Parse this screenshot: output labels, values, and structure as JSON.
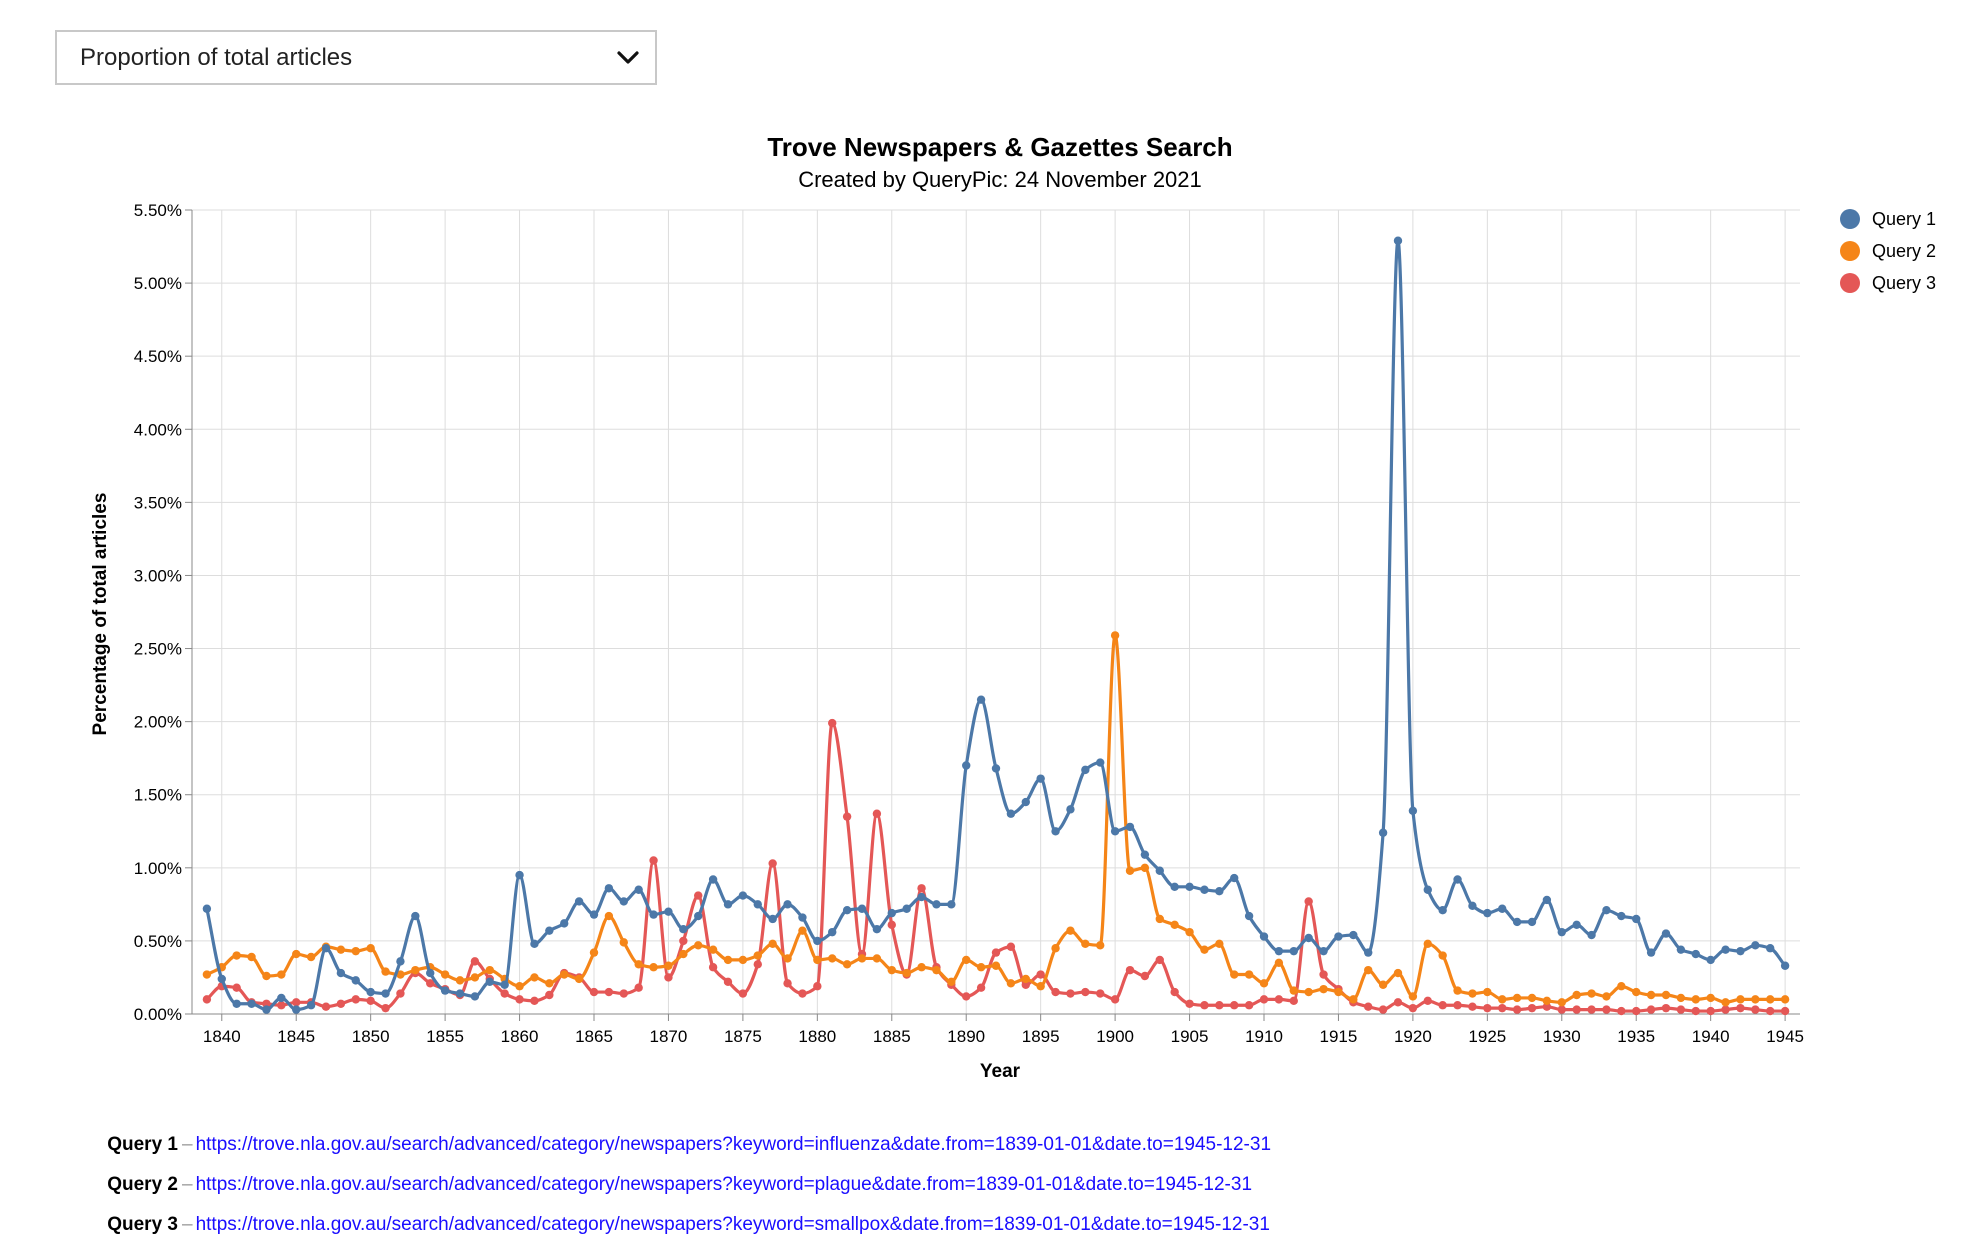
{
  "controls": {
    "measure_select": "Proportion of total articles"
  },
  "chart_data": {
    "type": "line",
    "title": "Trove Newspapers & Gazettes Search",
    "subtitle": "Created by QueryPic: 24 November 2021",
    "xlabel": "Year",
    "ylabel": "Percentage of total articles",
    "xlim": [
      1838,
      1946
    ],
    "ylim": [
      0,
      5.5
    ],
    "x_ticks": [
      1840,
      1845,
      1850,
      1855,
      1860,
      1865,
      1870,
      1875,
      1880,
      1885,
      1890,
      1895,
      1900,
      1905,
      1910,
      1915,
      1920,
      1925,
      1930,
      1935,
      1940,
      1945
    ],
    "x_tick_labels": [
      "1840",
      "1845",
      "1850",
      "1855",
      "1860",
      "1865",
      "1870",
      "1875",
      "1880",
      "1885",
      "1890",
      "1895",
      "1900",
      "1905",
      "1910",
      "1915",
      "1920",
      "1925",
      "1930",
      "1935",
      "1940",
      "1945"
    ],
    "y_ticks": [
      0,
      0.5,
      1,
      1.5,
      2,
      2.5,
      3,
      3.5,
      4,
      4.5,
      5,
      5.5
    ],
    "y_tick_labels": [
      "0.00%",
      "0.50%",
      "1.00%",
      "1.50%",
      "2.00%",
      "2.50%",
      "3.00%",
      "3.50%",
      "4.00%",
      "4.50%",
      "5.00%",
      "5.50%"
    ],
    "grid": true,
    "legend_position": "top-right",
    "x_start": 1839,
    "series": [
      {
        "name": "Query 1",
        "color": "#4c78a8",
        "values": [
          0.72,
          0.24,
          0.07,
          0.07,
          0.03,
          0.11,
          0.03,
          0.06,
          0.45,
          0.28,
          0.23,
          0.15,
          0.14,
          0.36,
          0.67,
          0.28,
          0.16,
          0.14,
          0.12,
          0.22,
          0.2,
          0.95,
          0.48,
          0.57,
          0.62,
          0.77,
          0.68,
          0.86,
          0.77,
          0.85,
          0.68,
          0.7,
          0.58,
          0.67,
          0.92,
          0.75,
          0.81,
          0.75,
          0.65,
          0.75,
          0.66,
          0.5,
          0.56,
          0.71,
          0.72,
          0.58,
          0.69,
          0.72,
          0.8,
          0.75,
          0.75,
          1.7,
          2.15,
          1.68,
          1.37,
          1.45,
          1.61,
          1.25,
          1.4,
          1.67,
          1.72,
          1.25,
          1.28,
          1.09,
          0.98,
          0.87,
          0.87,
          0.85,
          0.84,
          0.93,
          0.67,
          0.53,
          0.43,
          0.43,
          0.52,
          0.43,
          0.53,
          0.54,
          0.42,
          1.24,
          5.29,
          1.39,
          0.85,
          0.71,
          0.92,
          0.74,
          0.69,
          0.72,
          0.63,
          0.63,
          0.78,
          0.56,
          0.61,
          0.54,
          0.71,
          0.67,
          0.65,
          0.42,
          0.55,
          0.44,
          0.41,
          0.37,
          0.44,
          0.43,
          0.47,
          0.45,
          0.33
        ]
      },
      {
        "name": "Query 2",
        "color": "#f58518",
        "values": [
          0.27,
          0.32,
          0.4,
          0.39,
          0.26,
          0.27,
          0.41,
          0.39,
          0.46,
          0.44,
          0.43,
          0.45,
          0.29,
          0.27,
          0.3,
          0.32,
          0.27,
          0.23,
          0.25,
          0.3,
          0.24,
          0.19,
          0.25,
          0.21,
          0.27,
          0.24,
          0.42,
          0.67,
          0.49,
          0.34,
          0.32,
          0.33,
          0.41,
          0.47,
          0.44,
          0.37,
          0.37,
          0.4,
          0.48,
          0.38,
          0.57,
          0.37,
          0.38,
          0.34,
          0.38,
          0.38,
          0.3,
          0.28,
          0.32,
          0.3,
          0.22,
          0.37,
          0.32,
          0.33,
          0.21,
          0.24,
          0.19,
          0.45,
          0.57,
          0.48,
          0.47,
          2.59,
          0.98,
          1.0,
          0.65,
          0.61,
          0.56,
          0.44,
          0.48,
          0.27,
          0.27,
          0.21,
          0.35,
          0.16,
          0.15,
          0.17,
          0.15,
          0.1,
          0.3,
          0.2,
          0.28,
          0.12,
          0.48,
          0.4,
          0.16,
          0.14,
          0.15,
          0.1,
          0.11,
          0.11,
          0.09,
          0.08,
          0.13,
          0.14,
          0.12,
          0.19,
          0.15,
          0.13,
          0.13,
          0.11,
          0.1,
          0.11,
          0.08,
          0.1,
          0.1,
          0.1,
          0.1
        ]
      },
      {
        "name": "Query 3",
        "color": "#e45756",
        "values": [
          0.1,
          0.19,
          0.18,
          0.08,
          0.07,
          0.06,
          0.08,
          0.08,
          0.05,
          0.07,
          0.1,
          0.09,
          0.04,
          0.14,
          0.28,
          0.21,
          0.17,
          0.13,
          0.36,
          0.24,
          0.14,
          0.1,
          0.09,
          0.13,
          0.28,
          0.25,
          0.15,
          0.15,
          0.14,
          0.18,
          1.05,
          0.25,
          0.5,
          0.81,
          0.32,
          0.22,
          0.14,
          0.34,
          1.03,
          0.21,
          0.14,
          0.19,
          1.99,
          1.35,
          0.41,
          1.37,
          0.61,
          0.27,
          0.86,
          0.32,
          0.2,
          0.12,
          0.18,
          0.42,
          0.46,
          0.2,
          0.27,
          0.15,
          0.14,
          0.15,
          0.14,
          0.1,
          0.3,
          0.26,
          0.37,
          0.15,
          0.07,
          0.06,
          0.06,
          0.06,
          0.06,
          0.1,
          0.1,
          0.09,
          0.77,
          0.27,
          0.17,
          0.08,
          0.05,
          0.03,
          0.08,
          0.04,
          0.09,
          0.06,
          0.06,
          0.05,
          0.04,
          0.04,
          0.03,
          0.04,
          0.05,
          0.03,
          0.03,
          0.03,
          0.03,
          0.02,
          0.02,
          0.03,
          0.04,
          0.03,
          0.02,
          0.02,
          0.03,
          0.04,
          0.03,
          0.02,
          0.02
        ]
      }
    ]
  },
  "queries": [
    {
      "label": "Query 1",
      "url": "https://trove.nla.gov.au/search/advanced/category/newspapers?keyword=influenza&date.from=1839-01-01&date.to=1945-12-31"
    },
    {
      "label": "Query 2",
      "url": "https://trove.nla.gov.au/search/advanced/category/newspapers?keyword=plague&date.from=1839-01-01&date.to=1945-12-31"
    },
    {
      "label": "Query 3",
      "url": "https://trove.nla.gov.au/search/advanced/category/newspapers?keyword=smallpox&date.from=1839-01-01&date.to=1945-12-31"
    }
  ]
}
